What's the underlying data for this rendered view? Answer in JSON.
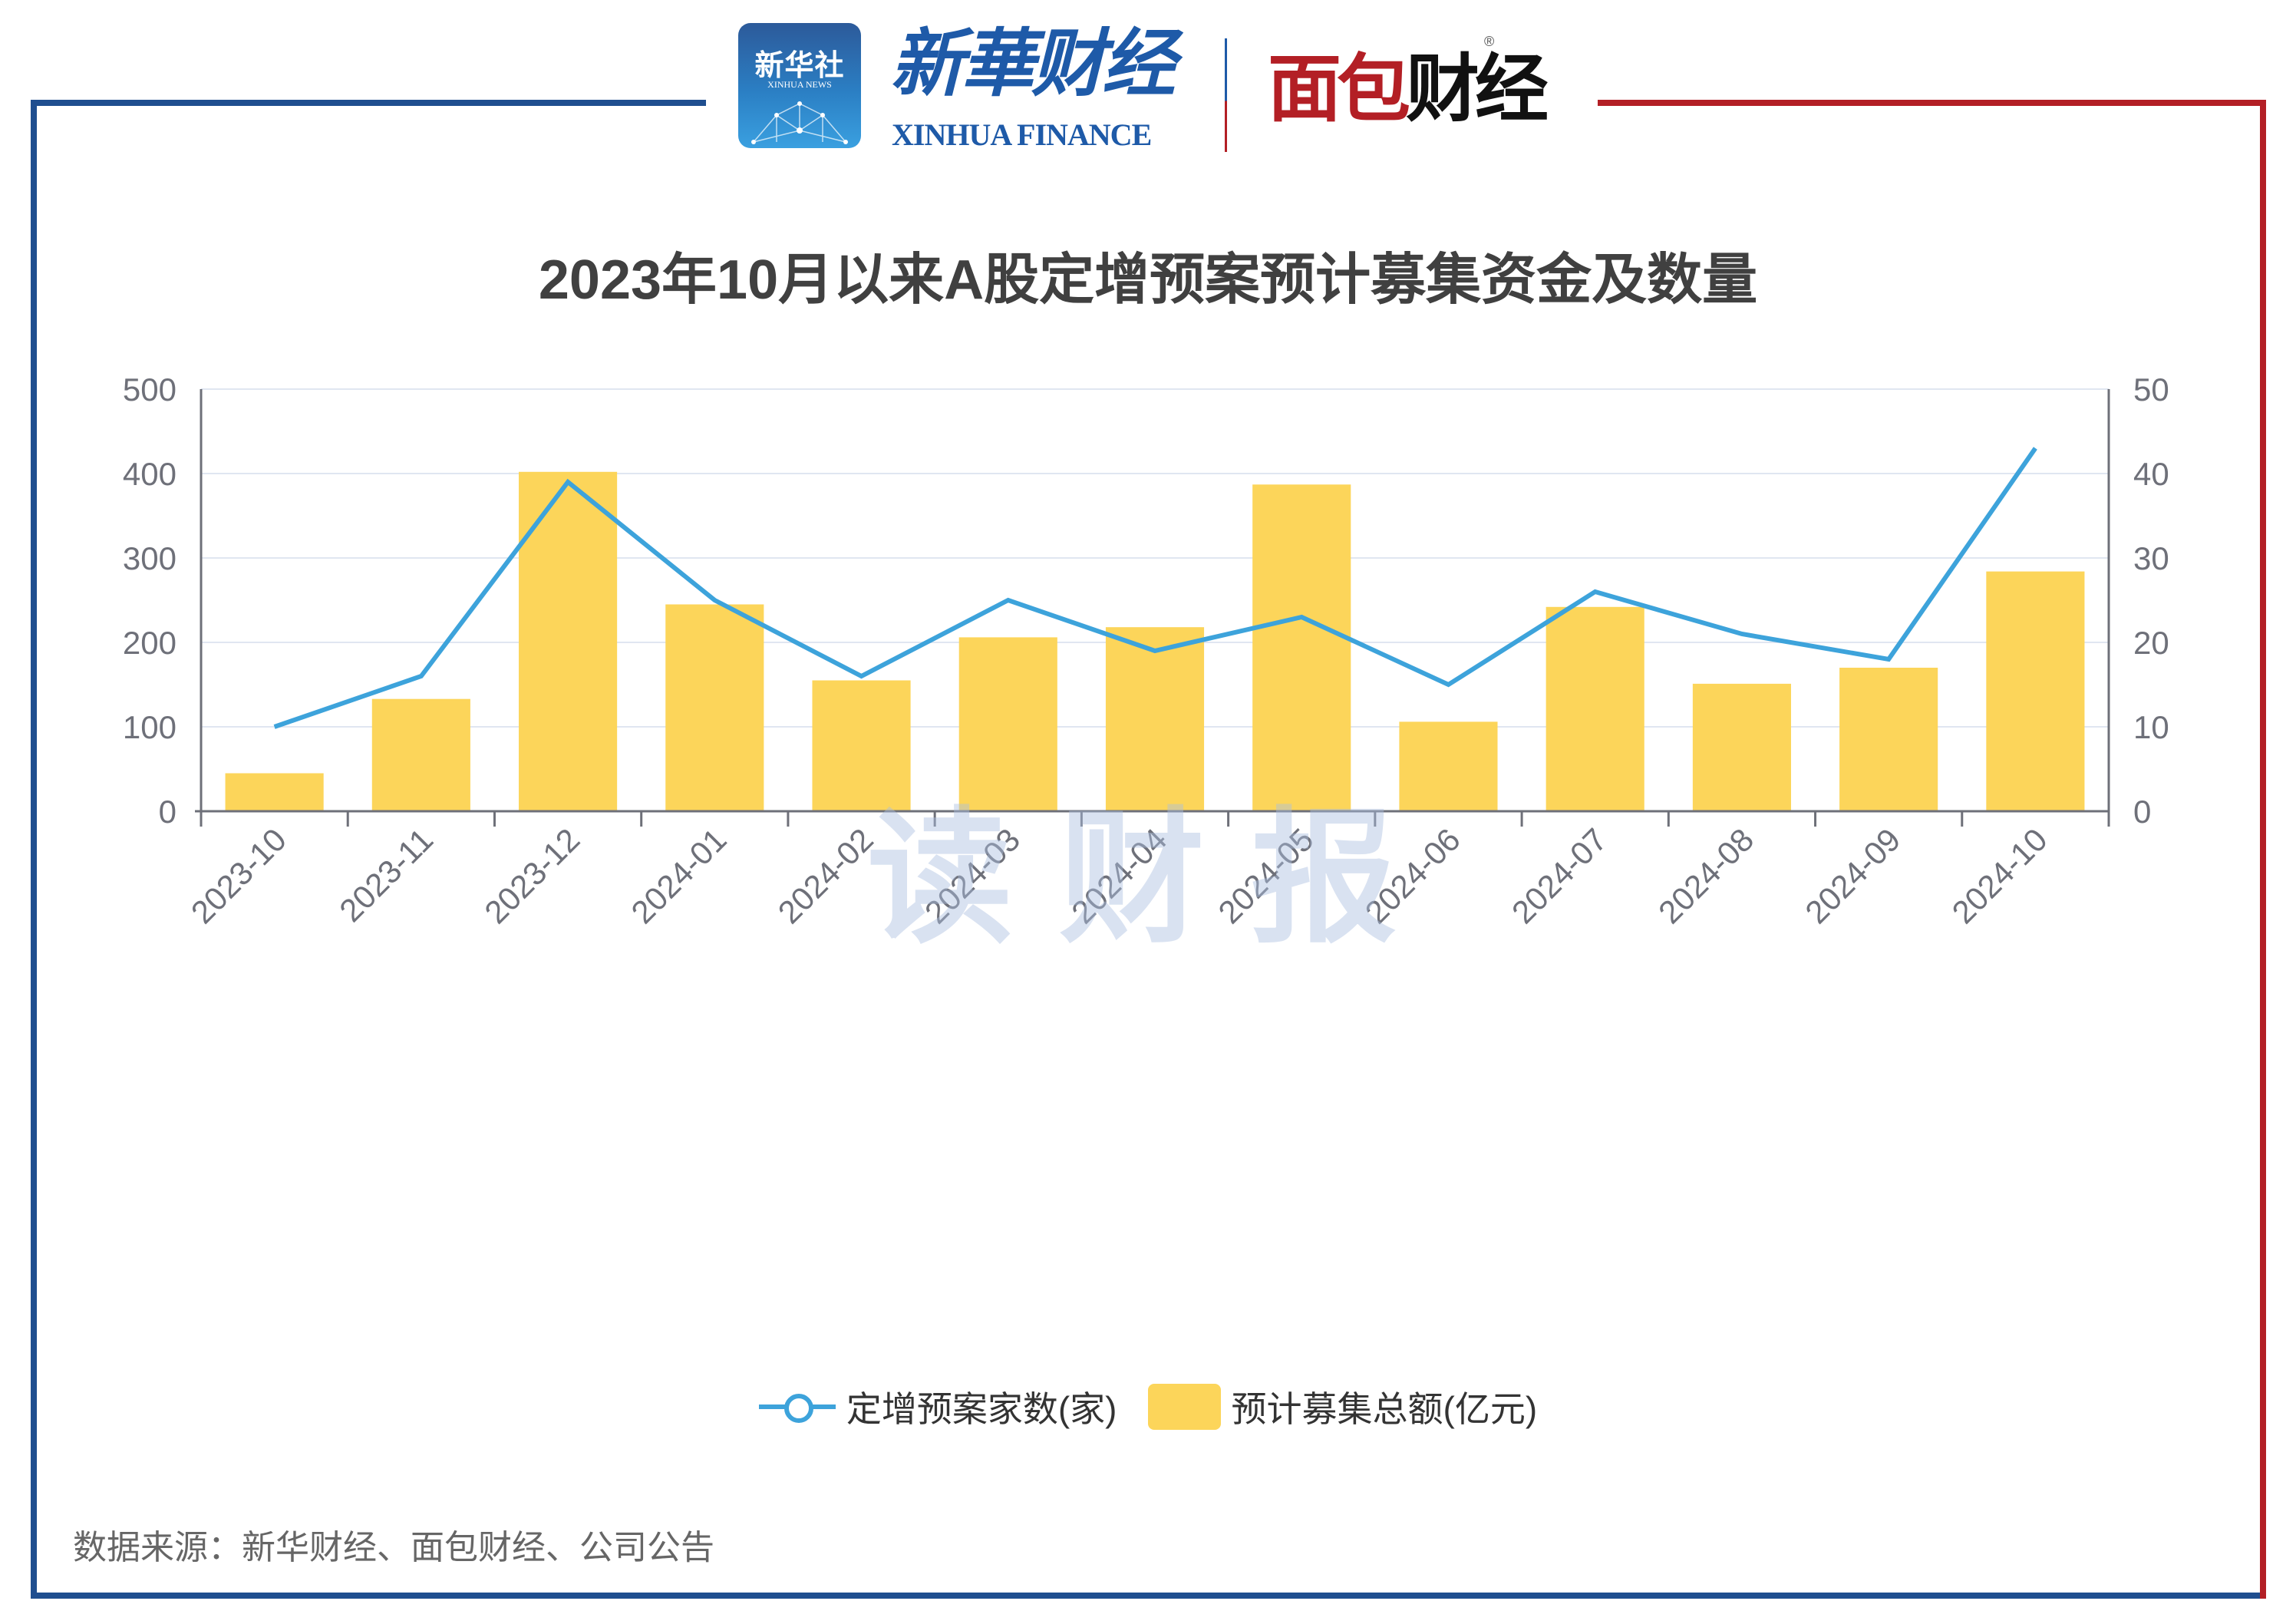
{
  "header": {
    "xinhua_badge_cn": "新华社",
    "xinhua_badge_en": "XINHUA NEWS",
    "xinhua_finance_cn": "新華财经",
    "xinhua_finance_en": "XINHUA FINANCE",
    "mianbao_red": "面包",
    "mianbao_black": "财经",
    "registered_mark": "®"
  },
  "title": "2023年10月以来A股定增预案预计募集资金及数量",
  "watermark": "读财报",
  "legend": {
    "line_label": "定增预案家数(家)",
    "bar_label": "预计募集总额(亿元)"
  },
  "source": "数据来源：新华财经、面包财经、公司公告",
  "colors": {
    "bar": "#fcd55a",
    "line": "#3da3db",
    "frame_blue": "#1f4e8f",
    "frame_red": "#b31f25",
    "grid": "#e0e6f1",
    "axis": "#6e7079",
    "tick_label": "#6e7079"
  },
  "chart_data": {
    "type": "bar",
    "title": "2023年10月以来A股定增预案预计募集资金及数量",
    "categories": [
      "2023-10",
      "2023-11",
      "2023-12",
      "2024-01",
      "2024-02",
      "2024-03",
      "2024-04",
      "2024-05",
      "2024-06",
      "2024-07",
      "2024-08",
      "2024-09",
      "2024-10"
    ],
    "series": [
      {
        "name": "预计募集总额(亿元)",
        "type": "bar",
        "axis": "left",
        "values": [
          45,
          133,
          402,
          245,
          155,
          206,
          218,
          387,
          106,
          242,
          151,
          170,
          284
        ]
      },
      {
        "name": "定增预案家数(家)",
        "type": "line",
        "axis": "right",
        "values": [
          10,
          16,
          39,
          25,
          16,
          25,
          19,
          23,
          15,
          26,
          21,
          18,
          43
        ]
      }
    ],
    "left_axis": {
      "ticks": [
        "0",
        "100",
        "200",
        "300",
        "400",
        "500"
      ],
      "ylim": [
        0,
        500
      ]
    },
    "right_axis": {
      "ticks": [
        "0",
        "10",
        "20",
        "30",
        "40",
        "50"
      ],
      "ylim": [
        0,
        50
      ]
    },
    "xlabel": "",
    "ylabel": "",
    "grid": true,
    "legend_position": "bottom"
  }
}
